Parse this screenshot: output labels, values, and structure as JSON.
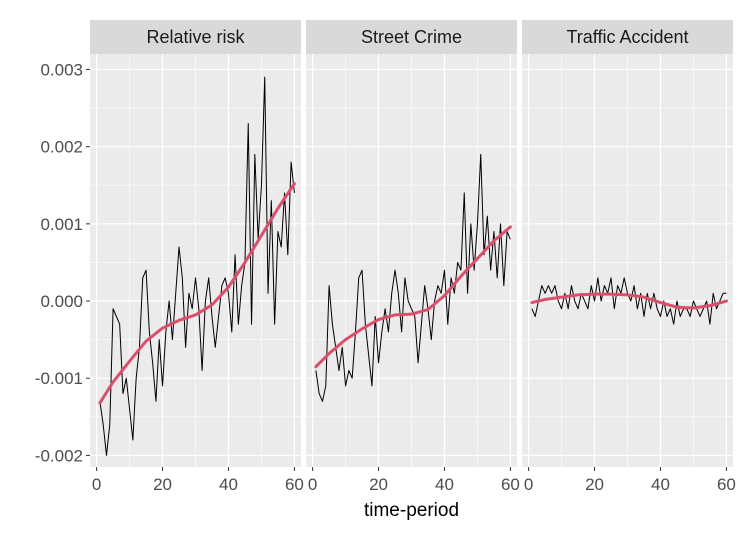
{
  "chart_data": {
    "type": "line",
    "xlabel": "time-period",
    "ylabel": "",
    "xlim": [
      -2,
      62
    ],
    "ylim": [
      -0.00215,
      0.0032
    ],
    "x_ticks": [
      0,
      20,
      40,
      60
    ],
    "x_tick_labels": [
      "0",
      "20",
      "40",
      "60"
    ],
    "y_ticks": [
      -0.002,
      -0.001,
      0.0,
      0.001,
      0.002,
      0.003
    ],
    "y_tick_labels": [
      "-0.002",
      "-0.001",
      "0.000",
      "0.001",
      "0.002",
      "0.003"
    ],
    "grid": true,
    "colors": {
      "panel_bg": "#ebebeb",
      "strip_bg": "#d9d9d9",
      "grid": "#ffffff",
      "raw_line": "#000000",
      "smooth_line": "#dc4f6c"
    },
    "facets": [
      {
        "title": "Relative risk",
        "raw": {
          "x": [
            1,
            2,
            3,
            4,
            5,
            6,
            7,
            8,
            9,
            10,
            11,
            12,
            13,
            14,
            15,
            16,
            17,
            18,
            19,
            20,
            21,
            22,
            23,
            24,
            25,
            26,
            27,
            28,
            29,
            30,
            31,
            32,
            33,
            34,
            35,
            36,
            37,
            38,
            39,
            40,
            41,
            42,
            43,
            44,
            45,
            46,
            47,
            48,
            49,
            50,
            51,
            52,
            53,
            54,
            55,
            56,
            57,
            58,
            59,
            60
          ],
          "y": [
            -0.0013,
            -0.0016,
            -0.002,
            -0.0016,
            -0.0001,
            -0.0002,
            -0.0003,
            -0.0012,
            -0.001,
            -0.0014,
            -0.0018,
            -0.001,
            -0.0006,
            0.0003,
            0.0004,
            -0.0004,
            -0.0008,
            -0.0013,
            -0.0005,
            -0.0011,
            -0.0004,
            0.0,
            -0.0005,
            0.0001,
            0.0007,
            0.0003,
            -0.0006,
            0.0001,
            -0.0001,
            0.0003,
            -0.0001,
            -0.0009,
            0.0,
            0.0003,
            -0.0002,
            -0.0006,
            -0.0002,
            0.0002,
            0.0003,
            0.0001,
            -0.0004,
            0.0006,
            -0.0003,
            0.0002,
            0.0005,
            0.0023,
            -0.0003,
            0.0019,
            0.0008,
            0.0015,
            0.0029,
            0.0001,
            0.0013,
            -0.0003,
            0.0009,
            0.0007,
            0.0014,
            0.0006,
            0.0018,
            0.0014
          ]
        },
        "smooth": {
          "x": [
            1,
            5,
            10,
            15,
            20,
            25,
            30,
            35,
            40,
            45,
            50,
            55,
            60
          ],
          "y": [
            -0.00132,
            -0.00105,
            -0.00078,
            -0.00052,
            -0.00035,
            -0.00025,
            -0.00018,
            -5e-05,
            0.00018,
            0.0005,
            0.00085,
            0.0012,
            0.00152
          ]
        }
      },
      {
        "title": "Street Crime",
        "raw": {
          "x": [
            1,
            2,
            3,
            4,
            5,
            6,
            7,
            8,
            9,
            10,
            11,
            12,
            13,
            14,
            15,
            16,
            17,
            18,
            19,
            20,
            21,
            22,
            23,
            24,
            25,
            26,
            27,
            28,
            29,
            30,
            31,
            32,
            33,
            34,
            35,
            36,
            37,
            38,
            39,
            40,
            41,
            42,
            43,
            44,
            45,
            46,
            47,
            48,
            49,
            50,
            51,
            52,
            53,
            54,
            55,
            56,
            57,
            58,
            59,
            60
          ],
          "y": [
            -0.0009,
            -0.0012,
            -0.0013,
            -0.0011,
            0.0002,
            -0.0003,
            -0.0006,
            -0.0009,
            -0.0006,
            -0.0011,
            -0.0009,
            -0.001,
            -0.0004,
            0.0003,
            0.0004,
            -0.0003,
            -0.0007,
            -0.0011,
            -0.0002,
            -0.0008,
            -0.0004,
            -0.0001,
            -0.0004,
            0.0001,
            0.0004,
            0.0001,
            -0.0004,
            0.0003,
            0.0,
            -0.0001,
            -0.0002,
            -0.0008,
            -0.0003,
            0.0002,
            -0.0001,
            -0.0005,
            0.0,
            0.0002,
            0.0001,
            0.0004,
            -0.0003,
            0.0003,
            0.0001,
            0.0005,
            0.0004,
            0.0014,
            0.0001,
            0.001,
            0.0004,
            0.001,
            0.0019,
            0.0006,
            0.0011,
            0.0004,
            0.0009,
            0.0003,
            0.001,
            0.0002,
            0.0009,
            0.0008
          ]
        },
        "smooth": {
          "x": [
            1,
            5,
            10,
            15,
            20,
            25,
            30,
            35,
            40,
            45,
            50,
            55,
            60
          ],
          "y": [
            -0.00085,
            -0.00068,
            -0.0005,
            -0.00036,
            -0.00024,
            -0.00018,
            -0.00017,
            -0.00011,
            7e-05,
            0.00032,
            0.00055,
            0.00078,
            0.00096
          ]
        }
      },
      {
        "title": "Traffic Accident",
        "raw": {
          "x": [
            1,
            2,
            3,
            4,
            5,
            6,
            7,
            8,
            9,
            10,
            11,
            12,
            13,
            14,
            15,
            16,
            17,
            18,
            19,
            20,
            21,
            22,
            23,
            24,
            25,
            26,
            27,
            28,
            29,
            30,
            31,
            32,
            33,
            34,
            35,
            36,
            37,
            38,
            39,
            40,
            41,
            42,
            43,
            44,
            45,
            46,
            47,
            48,
            49,
            50,
            51,
            52,
            53,
            54,
            55,
            56,
            57,
            58,
            59,
            60
          ],
          "y": [
            -0.0001,
            -0.0002,
            0.0,
            0.0002,
            0.0001,
            0.0002,
            0.0001,
            0.0002,
            0.0,
            -0.0001,
            0.0001,
            -0.0001,
            0.0002,
            0.0,
            -0.0001,
            0.0001,
            0.0,
            -0.0001,
            0.0002,
            0.0,
            0.0003,
            0.0,
            0.0002,
            0.0001,
            0.0003,
            -0.0001,
            0.0002,
            0.0001,
            0.0003,
            0.0001,
            0.0,
            0.0002,
            -0.0001,
            0.0001,
            -0.0002,
            0.0001,
            -0.0001,
            0.0001,
            -0.0001,
            -0.0002,
            0.0,
            -0.0002,
            -0.0001,
            -0.0003,
            0.0,
            -0.0002,
            -0.0001,
            -0.0001,
            -0.0002,
            0.0,
            -0.0001,
            -0.0002,
            -0.0001,
            0.0,
            -0.0003,
            0.0001,
            -0.0001,
            0.0,
            0.0001,
            0.0001
          ]
        },
        "smooth": {
          "x": [
            1,
            5,
            10,
            15,
            20,
            25,
            30,
            35,
            40,
            45,
            50,
            55,
            60
          ],
          "y": [
            -2e-05,
            2e-05,
            5e-05,
            8e-05,
            9e-05,
            9e-05,
            8e-05,
            5e-05,
            -2e-05,
            -8e-05,
            -9e-05,
            -6e-05,
            0.0
          ]
        }
      }
    ]
  }
}
